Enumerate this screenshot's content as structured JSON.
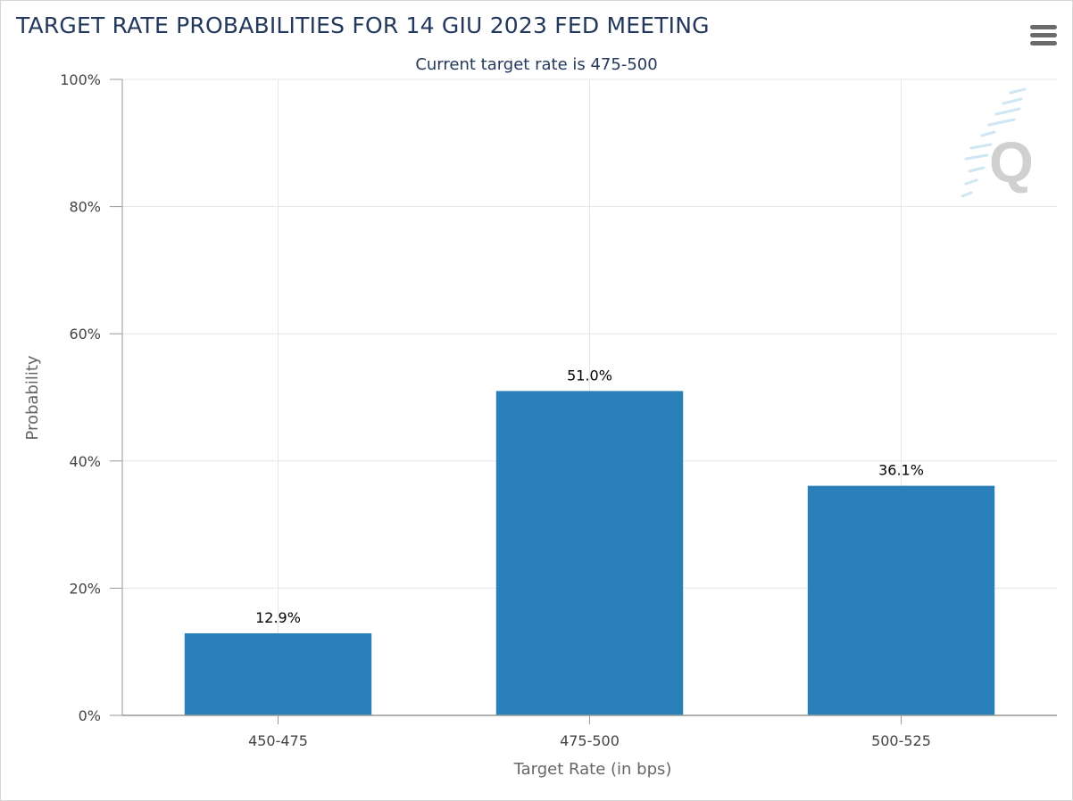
{
  "chart": {
    "title": "TARGET RATE PROBABILITIES FOR 14 GIU 2023 FED MEETING",
    "subtitle": "Current target rate is 475-500"
  },
  "chart_data": {
    "type": "bar",
    "title": "TARGET RATE PROBABILITIES FOR 14 GIU 2023 FED MEETING",
    "subtitle": "Current target rate is 475-500",
    "categories": [
      "450-475",
      "475-500",
      "500-525"
    ],
    "values": [
      12.9,
      51.0,
      36.1
    ],
    "data_labels": [
      "12.9%",
      "51.0%",
      "36.1%"
    ],
    "xlabel": "Target Rate (in bps)",
    "ylabel": "Probability",
    "ylim": [
      0,
      100
    ],
    "yticks": [
      0,
      20,
      40,
      60,
      80,
      100
    ],
    "ytick_labels": [
      "0%",
      "20%",
      "40%",
      "60%",
      "80%",
      "100%"
    ],
    "grid": true,
    "legend": "none",
    "bar_color": "#2980b9"
  },
  "colors": {
    "title": "#24385c",
    "grid": "#e6e6e6",
    "axis_line": "#999999"
  },
  "icons": {
    "menu": "hamburger-menu-icon",
    "watermark": "quikstrike-logo-icon"
  }
}
